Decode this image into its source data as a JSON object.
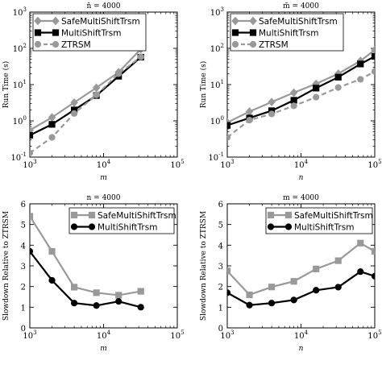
{
  "chart_data": [
    {
      "type": "line",
      "title": "n̄ = 4000",
      "xlabel": "m",
      "ylabel": "Run Time (s)",
      "xscale": "log",
      "yscale": "log",
      "xlim": [
        1000,
        100000
      ],
      "ylim": [
        0.1,
        1000
      ],
      "xticks": [
        {
          "v": 1000,
          "b": "10",
          "e": "3"
        },
        {
          "v": 10000,
          "b": "10",
          "e": "4"
        },
        {
          "v": 100000,
          "b": "10",
          "e": "5"
        }
      ],
      "yticks": [
        {
          "v": 0.1,
          "b": "10",
          "e": "-1"
        },
        {
          "v": 1,
          "b": "10",
          "e": "0"
        },
        {
          "v": 10,
          "b": "10",
          "e": "1"
        },
        {
          "v": 100,
          "b": "10",
          "e": "2"
        },
        {
          "v": 1000,
          "b": "10",
          "e": "3"
        }
      ],
      "legend": "top-left",
      "series": [
        {
          "name": "SafeMultiShiftTrsm",
          "color": "#999999",
          "marker": "diamond",
          "dash": "solid",
          "x": [
            1000,
            2000,
            4000,
            8000,
            16000,
            32000
          ],
          "y": [
            0.55,
            1.25,
            3.2,
            8.2,
            22,
            95
          ]
        },
        {
          "name": "MultiShiftTrsm",
          "color": "#000000",
          "marker": "square",
          "dash": "solid",
          "x": [
            1000,
            2000,
            4000,
            8000,
            16000,
            32000
          ],
          "y": [
            0.4,
            0.8,
            2.0,
            5.0,
            17,
            57
          ]
        },
        {
          "name": "ZTRSM",
          "color": "#999999",
          "marker": "circle",
          "dash": "dashed",
          "x": [
            1000,
            2000,
            4000,
            8000,
            16000,
            32000
          ],
          "y": [
            0.13,
            0.35,
            1.6,
            5.2,
            20,
            58
          ]
        }
      ]
    },
    {
      "type": "line",
      "title": "m̄ = 4000",
      "xlabel": "n",
      "ylabel": "Run Time (s)",
      "xscale": "log",
      "yscale": "log",
      "xlim": [
        1000,
        100000
      ],
      "ylim": [
        0.1,
        1000
      ],
      "xticks": [
        {
          "v": 1000,
          "b": "10",
          "e": "3"
        },
        {
          "v": 10000,
          "b": "10",
          "e": "4"
        },
        {
          "v": 100000,
          "b": "10",
          "e": "5"
        }
      ],
      "yticks": [
        {
          "v": 0.1,
          "b": "10",
          "e": "-1"
        },
        {
          "v": 1,
          "b": "10",
          "e": "0"
        },
        {
          "v": 10,
          "b": "10",
          "e": "1"
        },
        {
          "v": 100,
          "b": "10",
          "e": "2"
        },
        {
          "v": 1000,
          "b": "10",
          "e": "3"
        }
      ],
      "legend": "top-left",
      "series": [
        {
          "name": "SafeMultiShiftTrsm",
          "color": "#999999",
          "marker": "diamond",
          "dash": "solid",
          "x": [
            1000,
            2000,
            4000,
            8000,
            16000,
            32000,
            64000,
            100000
          ],
          "y": [
            0.9,
            1.8,
            3.3,
            6.0,
            10.5,
            20,
            45,
            90
          ]
        },
        {
          "name": "MultiShiftTrsm",
          "color": "#000000",
          "marker": "square",
          "dash": "solid",
          "x": [
            1000,
            2000,
            4000,
            8000,
            16000,
            32000,
            64000,
            100000
          ],
          "y": [
            0.75,
            1.2,
            1.9,
            3.7,
            8.0,
            16,
            37,
            60
          ]
        },
        {
          "name": "ZTRSM",
          "color": "#999999",
          "marker": "circle",
          "dash": "dashed",
          "x": [
            1000,
            2000,
            4000,
            8000,
            16000,
            32000,
            64000,
            100000
          ],
          "y": [
            0.35,
            1.05,
            1.55,
            2.6,
            4.5,
            8.3,
            14,
            23
          ]
        }
      ]
    },
    {
      "type": "line",
      "title": "n = 4000",
      "xlabel": "m",
      "ylabel": "Slowdown Relative to ZTRSM",
      "xscale": "log",
      "yscale": "linear",
      "xlim": [
        1000,
        100000
      ],
      "ylim": [
        0,
        6
      ],
      "xticks": [
        {
          "v": 1000,
          "b": "10",
          "e": "3"
        },
        {
          "v": 10000,
          "b": "10",
          "e": "4"
        },
        {
          "v": 100000,
          "b": "10",
          "e": "5"
        }
      ],
      "yticks": [
        {
          "v": 0,
          "t": "0"
        },
        {
          "v": 1,
          "t": "1"
        },
        {
          "v": 2,
          "t": "2"
        },
        {
          "v": 3,
          "t": "3"
        },
        {
          "v": 4,
          "t": "4"
        },
        {
          "v": 5,
          "t": "5"
        },
        {
          "v": 6,
          "t": "6"
        }
      ],
      "legend": "top-right",
      "series": [
        {
          "name": "SafeMultiShiftTrsm",
          "color": "#999999",
          "marker": "square",
          "dash": "solid",
          "x": [
            1000,
            2000,
            4000,
            8000,
            16000,
            32000
          ],
          "y": [
            5.4,
            3.7,
            1.97,
            1.7,
            1.58,
            1.77
          ]
        },
        {
          "name": "MultiShiftTrsm",
          "color": "#000000",
          "marker": "circle",
          "dash": "solid",
          "x": [
            1000,
            2000,
            4000,
            8000,
            16000,
            32000
          ],
          "y": [
            3.7,
            2.3,
            1.2,
            1.08,
            1.28,
            1.0
          ]
        }
      ]
    },
    {
      "type": "line",
      "title": "m = 4000",
      "xlabel": "n",
      "ylabel": "Slowdown Relative to ZTRSM",
      "xscale": "log",
      "yscale": "linear",
      "xlim": [
        1000,
        100000
      ],
      "ylim": [
        0,
        6
      ],
      "xticks": [
        {
          "v": 1000,
          "b": "10",
          "e": "3"
        },
        {
          "v": 10000,
          "b": "10",
          "e": "4"
        },
        {
          "v": 100000,
          "b": "10",
          "e": "5"
        }
      ],
      "yticks": [
        {
          "v": 0,
          "t": "0"
        },
        {
          "v": 1,
          "t": "1"
        },
        {
          "v": 2,
          "t": "2"
        },
        {
          "v": 3,
          "t": "3"
        },
        {
          "v": 4,
          "t": "4"
        },
        {
          "v": 5,
          "t": "5"
        },
        {
          "v": 6,
          "t": "6"
        }
      ],
      "legend": "top-right",
      "series": [
        {
          "name": "SafeMultiShiftTrsm",
          "color": "#999999",
          "marker": "square",
          "dash": "solid",
          "x": [
            1000,
            2000,
            4000,
            8000,
            16000,
            32000,
            64000,
            100000
          ],
          "y": [
            2.75,
            1.6,
            1.98,
            2.25,
            2.85,
            3.25,
            4.1,
            3.7
          ]
        },
        {
          "name": "MultiShiftTrsm",
          "color": "#000000",
          "marker": "circle",
          "dash": "solid",
          "x": [
            1000,
            2000,
            4000,
            8000,
            16000,
            32000,
            64000,
            100000
          ],
          "y": [
            1.7,
            1.1,
            1.2,
            1.35,
            1.82,
            1.97,
            2.72,
            2.5
          ]
        }
      ]
    }
  ]
}
